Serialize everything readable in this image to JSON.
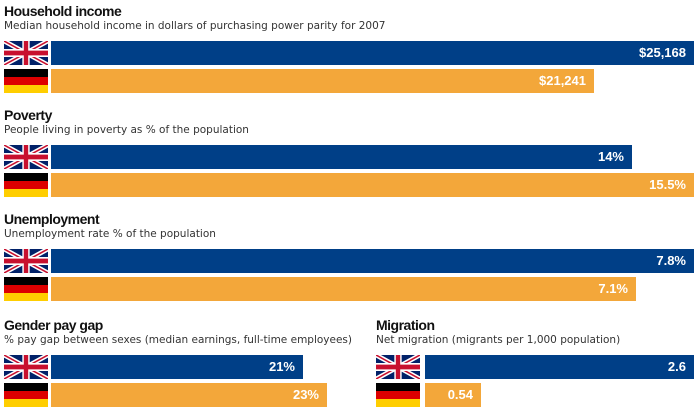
{
  "colors": {
    "uk": "#003f87",
    "de": "#f3a73a"
  },
  "legend_icons": {
    "uk": "uk-flag-icon",
    "de": "germany-flag-icon"
  },
  "chart_data": [
    {
      "type": "bar",
      "title": "Household income",
      "subtitle": "Median household income in dollars of purchasing power parity for 2007",
      "categories": [
        "UK",
        "Germany"
      ],
      "values": [
        25168,
        21241
      ],
      "labels": [
        "$25,168",
        "$21,241"
      ]
    },
    {
      "type": "bar",
      "title": "Poverty",
      "subtitle": "People living in poverty as % of the population",
      "categories": [
        "UK",
        "Germany"
      ],
      "values": [
        14,
        15.5
      ],
      "labels": [
        "14%",
        "15.5%"
      ]
    },
    {
      "type": "bar",
      "title": "Unemployment",
      "subtitle": "Unemployment rate % of the population",
      "categories": [
        "UK",
        "Germany"
      ],
      "values": [
        7.8,
        7.1
      ],
      "labels": [
        "7.8%",
        "7.1%"
      ]
    },
    {
      "type": "bar",
      "title": "Gender pay gap",
      "subtitle": "% pay gap between sexes (median earnings, full-time employees)",
      "categories": [
        "UK",
        "Germany"
      ],
      "values": [
        21,
        23
      ],
      "labels": [
        "21%",
        "23%"
      ]
    },
    {
      "type": "bar",
      "title": "Migration",
      "subtitle": "Net migration (migrants per 1,000 population)",
      "categories": [
        "UK",
        "Germany"
      ],
      "values": [
        2.6,
        0.54
      ],
      "labels": [
        "2.6",
        "0.54"
      ]
    }
  ]
}
